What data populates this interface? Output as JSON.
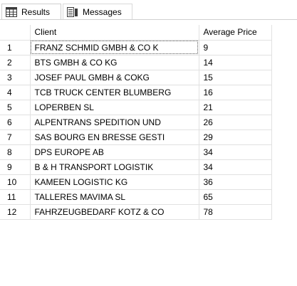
{
  "tabs": [
    {
      "label": "Results",
      "icon": "grid-icon",
      "active": true
    },
    {
      "label": "Messages",
      "icon": "messages-icon",
      "active": false
    }
  ],
  "columns": [
    "",
    "Client",
    "Average Price"
  ],
  "rows": [
    {
      "num": "1",
      "client": "FRANZ SCHMID GMBH & CO K",
      "price": "9"
    },
    {
      "num": "2",
      "client": "BTS GMBH & CO KG",
      "price": "14"
    },
    {
      "num": "3",
      "client": "JOSEF PAUL GMBH & COKG",
      "price": "15"
    },
    {
      "num": "4",
      "client": "TCB TRUCK CENTER BLUMBERG",
      "price": "16"
    },
    {
      "num": "5",
      "client": "LOPERBEN SL",
      "price": "21"
    },
    {
      "num": "6",
      "client": "ALPENTRANS SPEDITION UND",
      "price": "26"
    },
    {
      "num": "7",
      "client": "SAS BOURG EN BRESSE GESTI",
      "price": "29"
    },
    {
      "num": "8",
      "client": "DPS EUROPE AB",
      "price": "34"
    },
    {
      "num": "9",
      "client": "B & H TRANSPORT LOGISTIK",
      "price": "34"
    },
    {
      "num": "10",
      "client": "KAMEEN LOGISTIC KG",
      "price": "36"
    },
    {
      "num": "11",
      "client": "TALLERES MAVIMA SL",
      "price": "65"
    },
    {
      "num": "12",
      "client": "FAHRZEUGBEDARF KOTZ & CO",
      "price": "78"
    }
  ]
}
